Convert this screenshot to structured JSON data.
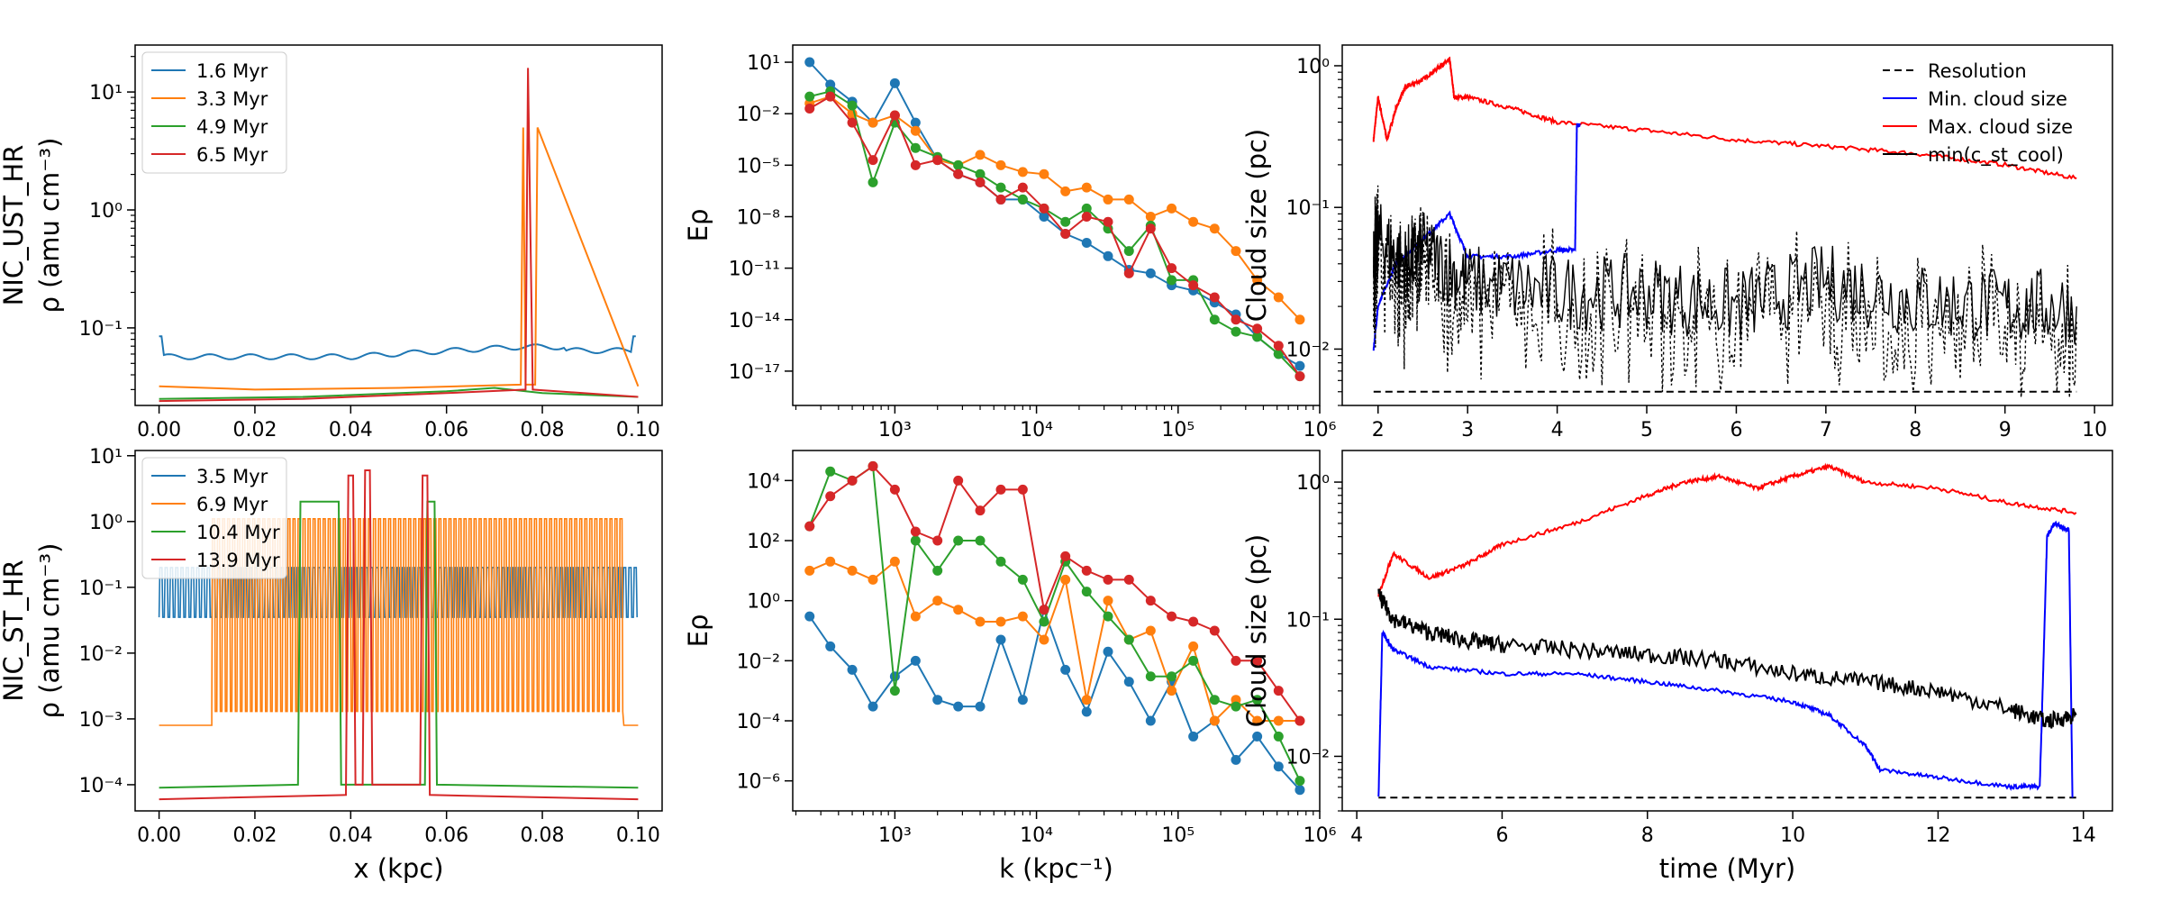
{
  "colors": {
    "c0": "#1f77b4",
    "c1": "#ff7f0e",
    "c2": "#2ca02c",
    "c3": "#d62728",
    "resolution": "#000000",
    "min_cloud": "#0000ff",
    "max_cloud": "#ff0000",
    "cool": "#000000"
  },
  "chart_data": [
    {
      "id": "A",
      "type": "line",
      "panel": "top-left",
      "row_label": "NIC_UST_HR",
      "ylabel": "ρ (amu cm⁻³)",
      "xlabel": "",
      "yscale": "log",
      "xlim": [
        -0.005,
        0.105
      ],
      "ylim": [
        0.022,
        25
      ],
      "xticks": [
        0.0,
        0.02,
        0.04,
        0.06,
        0.08,
        0.1
      ],
      "xtick_labels": [
        "0.00",
        "0.02",
        "0.04",
        "0.06",
        "0.08",
        "0.10"
      ],
      "yticks": [
        0.1,
        1,
        10
      ],
      "ytick_labels": [
        "10⁻¹",
        "10⁰",
        "10¹"
      ],
      "legend_position": "top-left",
      "series": [
        {
          "name": "1.6 Myr",
          "color": "#1f77b4",
          "kind": "wavy",
          "base": 0.06,
          "amp": 0.06,
          "per": 0.0085,
          "x": [
            0,
            0.02,
            0.04,
            0.06,
            0.07,
            0.08,
            0.1
          ],
          "y": [
            0.058,
            0.057,
            0.06,
            0.066,
            0.072,
            0.068,
            0.066
          ]
        },
        {
          "name": "3.3 Myr",
          "color": "#ff7f0e",
          "kind": "spiky",
          "base": 0.032,
          "x": [
            0,
            0.02,
            0.05,
            0.0755,
            0.076,
            0.0765,
            0.0785,
            0.079,
            0.1
          ],
          "y": [
            0.032,
            0.03,
            0.031,
            0.033,
            5,
            0.033,
            0.033,
            5,
            0.032
          ]
        },
        {
          "name": "4.9 Myr",
          "color": "#2ca02c",
          "kind": "flat",
          "x": [
            0,
            0.03,
            0.06,
            0.07,
            0.08,
            0.1
          ],
          "y": [
            0.025,
            0.026,
            0.029,
            0.031,
            0.028,
            0.026
          ]
        },
        {
          "name": "6.5 Myr",
          "color": "#d62728",
          "kind": "spike",
          "x": [
            0,
            0.03,
            0.06,
            0.0765,
            0.077,
            0.078,
            0.1
          ],
          "y": [
            0.024,
            0.025,
            0.028,
            0.03,
            16,
            0.03,
            0.026
          ]
        }
      ]
    },
    {
      "id": "B",
      "type": "line",
      "panel": "top-middle",
      "ylabel": "Eρ",
      "xlabel": "",
      "xscale": "log",
      "yscale": "log",
      "xlim": [
        190,
        1000000
      ],
      "ylim": [
        1e-19,
        100.0
      ],
      "xticks": [
        1000,
        10000,
        100000,
        1000000
      ],
      "xtick_labels": [
        "10³",
        "10⁴",
        "10⁵",
        "10⁶"
      ],
      "yticks": [
        10,
        0.01,
        1e-05,
        1e-08,
        1e-11,
        1e-14,
        1e-17
      ],
      "ytick_labels": [
        "10¹",
        "10⁻²",
        "10⁻⁵",
        "10⁻⁸",
        "10⁻¹¹",
        "10⁻¹⁴",
        "10⁻¹⁷"
      ],
      "x": [
        250,
        350,
        500,
        700,
        1000,
        1400,
        2000,
        2800,
        4000,
        5600,
        8000,
        11300,
        16000,
        22600,
        32000,
        45000,
        64000,
        90000,
        128000,
        181000,
        256000,
        362000,
        512000,
        724000
      ],
      "series": [
        {
          "name": "1.6 Myr",
          "color": "#1f77b4",
          "y": [
            10,
            0.5,
            0.05,
            0.003,
            0.6,
            0.003,
            2e-05,
            3e-06,
            1e-06,
            1e-07,
            1e-07,
            1e-08,
            1e-09,
            3e-10,
            5e-11,
            8e-12,
            5e-12,
            1e-12,
            5e-13,
            1e-13,
            2e-14,
            1e-15,
            1e-16,
            2e-17
          ]
        },
        {
          "name": "3.3 Myr",
          "color": "#ff7f0e",
          "y": [
            0.04,
            0.1,
            0.01,
            0.003,
            0.008,
            0.001,
            2e-05,
            1e-05,
            4e-05,
            1e-05,
            4e-06,
            3e-06,
            3e-07,
            5e-07,
            1e-07,
            1e-07,
            1e-08,
            3e-08,
            5e-09,
            2e-09,
            1e-10,
            2e-12,
            2e-13,
            1e-14
          ]
        },
        {
          "name": "4.9 Myr",
          "color": "#2ca02c",
          "y": [
            0.1,
            0.2,
            0.03,
            1e-06,
            0.003,
            0.0001,
            3e-05,
            1e-05,
            3e-06,
            5e-07,
            1e-07,
            3e-08,
            5e-09,
            3e-08,
            2e-09,
            1e-10,
            3e-09,
            2e-12,
            2e-12,
            1e-14,
            2e-15,
            1e-15,
            1e-16,
            5e-18
          ]
        },
        {
          "name": "6.5 Myr",
          "color": "#d62728",
          "y": [
            0.02,
            0.1,
            0.003,
            2e-05,
            0.008,
            1e-05,
            2e-05,
            3e-06,
            1e-06,
            1e-07,
            5e-07,
            3e-08,
            1e-09,
            1e-08,
            5e-09,
            5e-12,
            2e-09,
            1e-11,
            1e-12,
            2e-13,
            1e-14,
            3e-15,
            3e-16,
            5e-18
          ]
        }
      ]
    },
    {
      "id": "C",
      "type": "line",
      "panel": "top-right",
      "ylabel": "Cloud size (pc)",
      "xlabel": "",
      "yscale": "log",
      "xlim": [
        1.6,
        10.2
      ],
      "ylim": [
        0.004,
        1.4
      ],
      "xticks": [
        2,
        3,
        4,
        5,
        6,
        7,
        8,
        9,
        10
      ],
      "xtick_labels": [
        "2",
        "3",
        "4",
        "5",
        "6",
        "7",
        "8",
        "9",
        "10"
      ],
      "yticks": [
        0.01,
        0.1,
        1
      ],
      "ytick_labels": [
        "10⁻²",
        "10⁻¹",
        "10⁰"
      ],
      "legend_position": "top-right",
      "legend": [
        "Resolution",
        "Min. cloud size",
        "Max. cloud size",
        "min(c_st_cool)"
      ],
      "resolution": 0.005,
      "series": [
        {
          "name": "Max. cloud size",
          "color": "#ff0000",
          "x": [
            1.95,
            2.0,
            2.1,
            2.2,
            2.3,
            2.5,
            2.7,
            2.8,
            2.85,
            3.0,
            3.5,
            4.0,
            5.0,
            6.0,
            7.0,
            8.0,
            9.0,
            9.8
          ],
          "y": [
            0.3,
            0.6,
            0.3,
            0.5,
            0.7,
            0.8,
            1.0,
            1.1,
            0.6,
            0.6,
            0.5,
            0.4,
            0.35,
            0.3,
            0.27,
            0.24,
            0.2,
            0.16
          ]
        },
        {
          "name": "Min. cloud size",
          "color": "#0000ff",
          "x": [
            1.95,
            2.0,
            2.2,
            2.5,
            2.8,
            3.0,
            3.5,
            4.0,
            4.2,
            4.22,
            4.25
          ],
          "y": [
            0.01,
            0.02,
            0.04,
            0.06,
            0.09,
            0.045,
            0.045,
            0.05,
            0.05,
            0.38,
            0.38
          ]
        },
        {
          "name": "min(c_st_cool)",
          "color": "#000000",
          "x": [
            1.95,
            2.0,
            2.3,
            2.5,
            3.0,
            4.0,
            5.0,
            6.0,
            7.0,
            8.0,
            9.0,
            9.8
          ],
          "y": [
            0.05,
            0.06,
            0.04,
            0.05,
            0.03,
            0.025,
            0.025,
            0.02,
            0.03,
            0.022,
            0.02,
            0.02
          ]
        }
      ]
    },
    {
      "id": "D",
      "type": "line",
      "panel": "bottom-left",
      "row_label": "NIC_ST_HR",
      "ylabel": "ρ (amu cm⁻³)",
      "xlabel": "x (kpc)",
      "yscale": "log",
      "xlim": [
        -0.005,
        0.105
      ],
      "ylim": [
        4e-05,
        12
      ],
      "xticks": [
        0.0,
        0.02,
        0.04,
        0.06,
        0.08,
        0.1
      ],
      "xtick_labels": [
        "0.00",
        "0.02",
        "0.04",
        "0.06",
        "0.08",
        "0.10"
      ],
      "yticks": [
        0.0001,
        0.001,
        0.01,
        0.1,
        1,
        10
      ],
      "ytick_labels": [
        "10⁻⁴",
        "10⁻³",
        "10⁻²",
        "10⁻¹",
        "10⁰",
        "10¹"
      ],
      "legend_position": "top-left",
      "series": [
        {
          "name": "3.5 Myr",
          "color": "#1f77b4",
          "kind": "comb",
          "low": 0.035,
          "high": 0.2,
          "per": 0.0011
        },
        {
          "name": "6.9 Myr",
          "color": "#ff7f0e",
          "kind": "comb",
          "low": 0.0013,
          "high": 1.1,
          "per": 0.00105,
          "start": 0.011,
          "end": 0.097,
          "edge": 0.0008
        },
        {
          "name": "10.4 Myr",
          "color": "#2ca02c",
          "kind": "step",
          "x": [
            0,
            0.029,
            0.0295,
            0.0375,
            0.038,
            0.0555,
            0.056,
            0.0575,
            0.058,
            0.1
          ],
          "y": [
            9e-05,
            0.0001,
            2,
            2,
            0.0001,
            0.0001,
            2,
            2,
            0.0001,
            9e-05
          ]
        },
        {
          "name": "13.9 Myr",
          "color": "#d62728",
          "kind": "step",
          "x": [
            0,
            0.039,
            0.0395,
            0.0405,
            0.041,
            0.0425,
            0.043,
            0.044,
            0.0445,
            0.0545,
            0.055,
            0.056,
            0.0565,
            0.1
          ],
          "y": [
            6e-05,
            7e-05,
            5,
            5,
            0.0001,
            0.0001,
            6,
            6,
            0.0001,
            0.0001,
            5,
            5,
            7e-05,
            6e-05
          ]
        }
      ]
    },
    {
      "id": "E",
      "type": "line",
      "panel": "bottom-middle",
      "ylabel": "Eρ",
      "xlabel": "k (kpc⁻¹)",
      "xscale": "log",
      "yscale": "log",
      "xlim": [
        190,
        1000000
      ],
      "ylim": [
        1e-07,
        100000.0
      ],
      "xticks": [
        1000,
        10000,
        100000,
        1000000
      ],
      "xtick_labels": [
        "10³",
        "10⁴",
        "10⁵",
        "10⁶"
      ],
      "yticks": [
        10000,
        100,
        1,
        0.01,
        0.0001,
        1e-06
      ],
      "ytick_labels": [
        "10⁴",
        "10²",
        "10⁰",
        "10⁻²",
        "10⁻⁴",
        "10⁻⁶"
      ],
      "x": [
        250,
        350,
        500,
        700,
        1000,
        1400,
        2000,
        2800,
        4000,
        5600,
        8000,
        11300,
        16000,
        22600,
        32000,
        45000,
        64000,
        90000,
        128000,
        181000,
        256000,
        362000,
        512000,
        724000
      ],
      "series": [
        {
          "name": "3.5 Myr",
          "color": "#1f77b4",
          "y": [
            0.3,
            0.03,
            0.005,
            0.0003,
            0.003,
            0.01,
            0.0005,
            0.0003,
            0.0003,
            0.05,
            0.0005,
            0.5,
            0.005,
            0.0002,
            0.02,
            0.002,
            0.0001,
            0.002,
            3e-05,
            0.0001,
            5e-06,
            3e-05,
            3e-06,
            5e-07
          ]
        },
        {
          "name": "6.9 Myr",
          "color": "#ff7f0e",
          "y": [
            10,
            20,
            10,
            5,
            20,
            0.3,
            1,
            0.5,
            0.2,
            0.2,
            0.3,
            0.05,
            5,
            0.0005,
            1,
            0.05,
            0.1,
            0.001,
            0.03,
            0.0001,
            0.0005,
            0.0001,
            0.0001,
            0.0001
          ]
        },
        {
          "name": "10.4 Myr",
          "color": "#2ca02c",
          "y": [
            300,
            20000,
            10000,
            30000,
            0.001,
            100,
            10,
            100,
            100,
            20,
            5,
            0.2,
            20,
            2,
            0.3,
            0.05,
            0.003,
            0.003,
            0.01,
            0.0005,
            0.0003,
            0.0005,
            3e-05,
            1e-06
          ]
        },
        {
          "name": "13.9 Myr",
          "color": "#d62728",
          "y": [
            300,
            3000,
            10000,
            30000,
            5000,
            200,
            100,
            10000,
            1000,
            5000,
            5000,
            0.5,
            30,
            10,
            5,
            5,
            1,
            0.3,
            0.2,
            0.1,
            0.01,
            0.01,
            0.001,
            0.0001
          ]
        }
      ]
    },
    {
      "id": "F",
      "type": "line",
      "panel": "bottom-right",
      "ylabel": "Cloud size (pc)",
      "xlabel": "time (Myr)",
      "yscale": "log",
      "xlim": [
        3.8,
        14.4
      ],
      "ylim": [
        0.004,
        1.7
      ],
      "xticks": [
        4,
        6,
        8,
        10,
        12,
        14
      ],
      "xtick_labels": [
        "4",
        "6",
        "8",
        "10",
        "12",
        "14"
      ],
      "yticks": [
        0.01,
        0.1,
        1
      ],
      "ytick_labels": [
        "10⁻²",
        "10⁻¹",
        "10⁰"
      ],
      "resolution": 0.005,
      "series": [
        {
          "name": "Max. cloud size",
          "color": "#ff0000",
          "x": [
            4.3,
            4.5,
            5.0,
            5.5,
            6.0,
            7.0,
            8.0,
            8.5,
            9.0,
            9.5,
            10.0,
            10.5,
            11.0,
            12.0,
            13.0,
            13.9
          ],
          "y": [
            0.15,
            0.3,
            0.2,
            0.25,
            0.35,
            0.5,
            0.8,
            1.0,
            1.1,
            0.9,
            1.1,
            1.3,
            1.0,
            0.9,
            0.7,
            0.6
          ]
        },
        {
          "name": "Min. cloud size",
          "color": "#0000ff",
          "x": [
            4.3,
            4.35,
            4.5,
            5.0,
            6.0,
            7.0,
            8.0,
            9.0,
            10.0,
            10.5,
            11.0,
            11.2,
            12.0,
            13.0,
            13.4,
            13.5,
            13.6,
            13.8,
            13.85
          ],
          "y": [
            0.005,
            0.08,
            0.06,
            0.045,
            0.04,
            0.04,
            0.035,
            0.03,
            0.025,
            0.02,
            0.012,
            0.008,
            0.007,
            0.006,
            0.006,
            0.4,
            0.5,
            0.45,
            0.005
          ]
        },
        {
          "name": "min(c_st_cool)",
          "color": "#000000",
          "x": [
            4.3,
            4.5,
            5.0,
            5.5,
            6.0,
            7.0,
            8.0,
            9.0,
            10.0,
            11.0,
            12.0,
            13.0,
            13.5,
            13.9
          ],
          "y": [
            0.15,
            0.1,
            0.08,
            0.07,
            0.065,
            0.06,
            0.055,
            0.05,
            0.04,
            0.035,
            0.03,
            0.022,
            0.018,
            0.02
          ]
        }
      ]
    }
  ]
}
